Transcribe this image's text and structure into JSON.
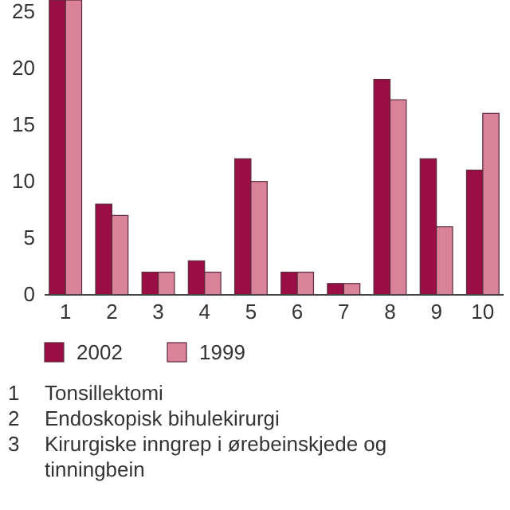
{
  "chart_data": {
    "type": "bar",
    "categories": [
      "1",
      "2",
      "3",
      "4",
      "5",
      "6",
      "7",
      "8",
      "9",
      "10"
    ],
    "series": [
      {
        "name": "2002",
        "color": "#9b0e45",
        "values": [
          26,
          8,
          2,
          3,
          12,
          2,
          1,
          19,
          12,
          11
        ]
      },
      {
        "name": "1999",
        "color": "#d9829a",
        "values": [
          26,
          7,
          2,
          2,
          10,
          2,
          1,
          17.2,
          6,
          16
        ]
      }
    ],
    "ylim": [
      0,
      26
    ],
    "yticks": [
      0,
      5,
      10,
      15,
      20,
      25
    ],
    "grid": false,
    "legend": "bottom",
    "annotations": [
      "1 Tonsillektomi",
      "2 Endoskopisk bihulekirurgi",
      "3 Kirurgiske inngrep i ørebeinskjede og tinningbein"
    ]
  }
}
